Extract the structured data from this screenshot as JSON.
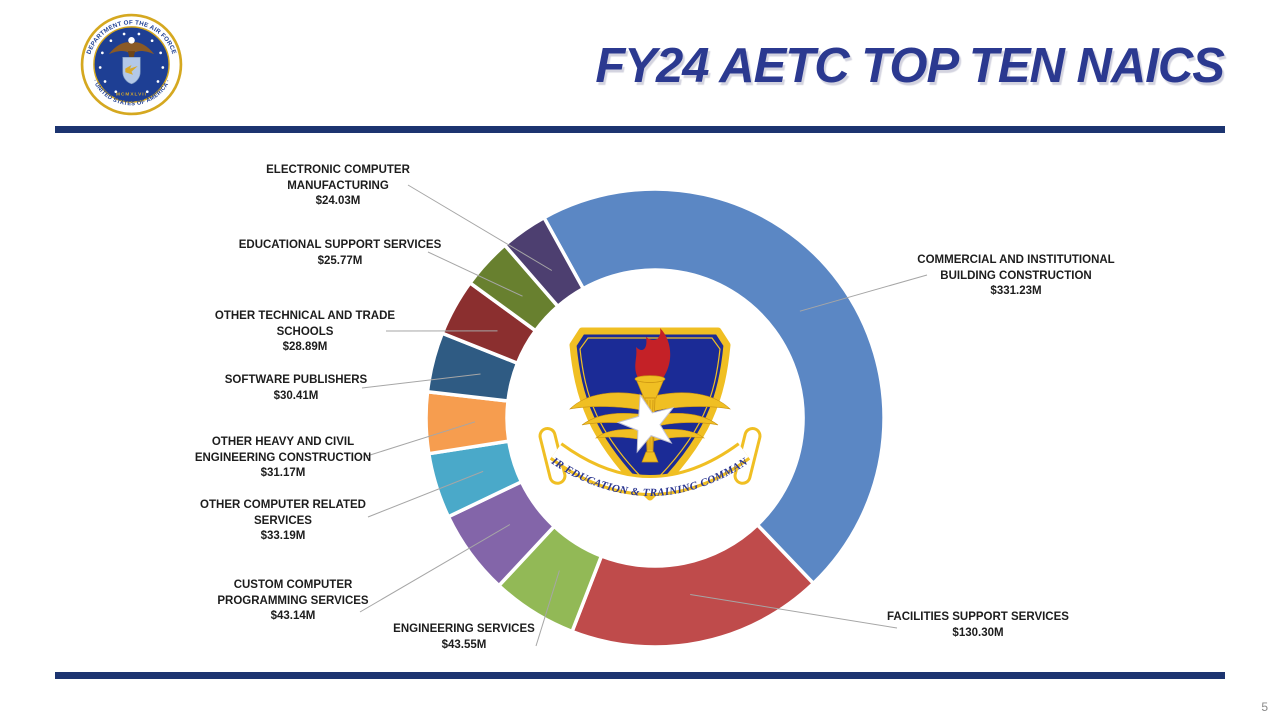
{
  "slide": {
    "title": "FY24 AETC TOP TEN NAICS",
    "page_number": "5",
    "colors": {
      "title": "#2B3990",
      "accent_bar": "#1C3470",
      "label_text": "#1D1D1D",
      "leader_line": "#A6A6A6"
    }
  },
  "seal": {
    "ring_text_top": "DEPARTMENT OF THE AIR FORCE",
    "ring_text_bottom": "· UNITED STATES OF AMERICA ·",
    "year_text": "MCMXLVII"
  },
  "emblem": {
    "banner_text": "AIR EDUCATION & TRAINING COMMAND"
  },
  "chart_data": {
    "type": "pie",
    "subtype": "donut",
    "title": "FY24 AETC TOP TEN NAICS",
    "unit": "USD millions",
    "start_angle_deg": -29,
    "legend_position": "callout-labels",
    "series": [
      {
        "name": "Commercial and Institutional Building Construction",
        "label_lines": [
          "COMMERCIAL AND INSTITUTIONAL",
          "BUILDING CONSTRUCTION"
        ],
        "value": 331.23,
        "value_label": "$331.23M",
        "color": "#5B87C4"
      },
      {
        "name": "Facilities Support Services",
        "label_lines": [
          "FACILITIES SUPPORT SERVICES"
        ],
        "value": 130.3,
        "value_label": "$130.30M",
        "color": "#BF4B4B"
      },
      {
        "name": "Engineering Services",
        "label_lines": [
          "ENGINEERING SERVICES"
        ],
        "value": 43.55,
        "value_label": "$43.55M",
        "color": "#92B956"
      },
      {
        "name": "Custom Computer Programming Services",
        "label_lines": [
          "CUSTOM COMPUTER",
          "PROGRAMMING SERVICES"
        ],
        "value": 43.14,
        "value_label": "$43.14M",
        "color": "#8365A9"
      },
      {
        "name": "Other Computer Related Services",
        "label_lines": [
          "OTHER COMPUTER RELATED",
          "SERVICES"
        ],
        "value": 33.19,
        "value_label": "$33.19M",
        "color": "#4AA9C9"
      },
      {
        "name": "Other Heavy and Civil Engineering Construction",
        "label_lines": [
          "OTHER HEAVY AND CIVIL",
          "ENGINEERING CONSTRUCTION"
        ],
        "value": 31.17,
        "value_label": "$31.17M",
        "color": "#F69D4F"
      },
      {
        "name": "Software Publishers",
        "label_lines": [
          "SOFTWARE PUBLISHERS"
        ],
        "value": 30.41,
        "value_label": "$30.41M",
        "color": "#2F5B83"
      },
      {
        "name": "Other Technical and Trade Schools",
        "label_lines": [
          "OTHER TECHNICAL AND TRADE",
          "SCHOOLS"
        ],
        "value": 28.89,
        "value_label": "$28.89M",
        "color": "#8B2F2F"
      },
      {
        "name": "Educational Support Services",
        "label_lines": [
          "EDUCATIONAL SUPPORT SERVICES"
        ],
        "value": 25.77,
        "value_label": "$25.77M",
        "color": "#68802F"
      },
      {
        "name": "Electronic Computer Manufacturing",
        "label_lines": [
          "ELECTRONIC COMPUTER",
          "MANUFACTURING"
        ],
        "value": 24.03,
        "value_label": "$24.03M",
        "color": "#4D3F70"
      }
    ]
  }
}
